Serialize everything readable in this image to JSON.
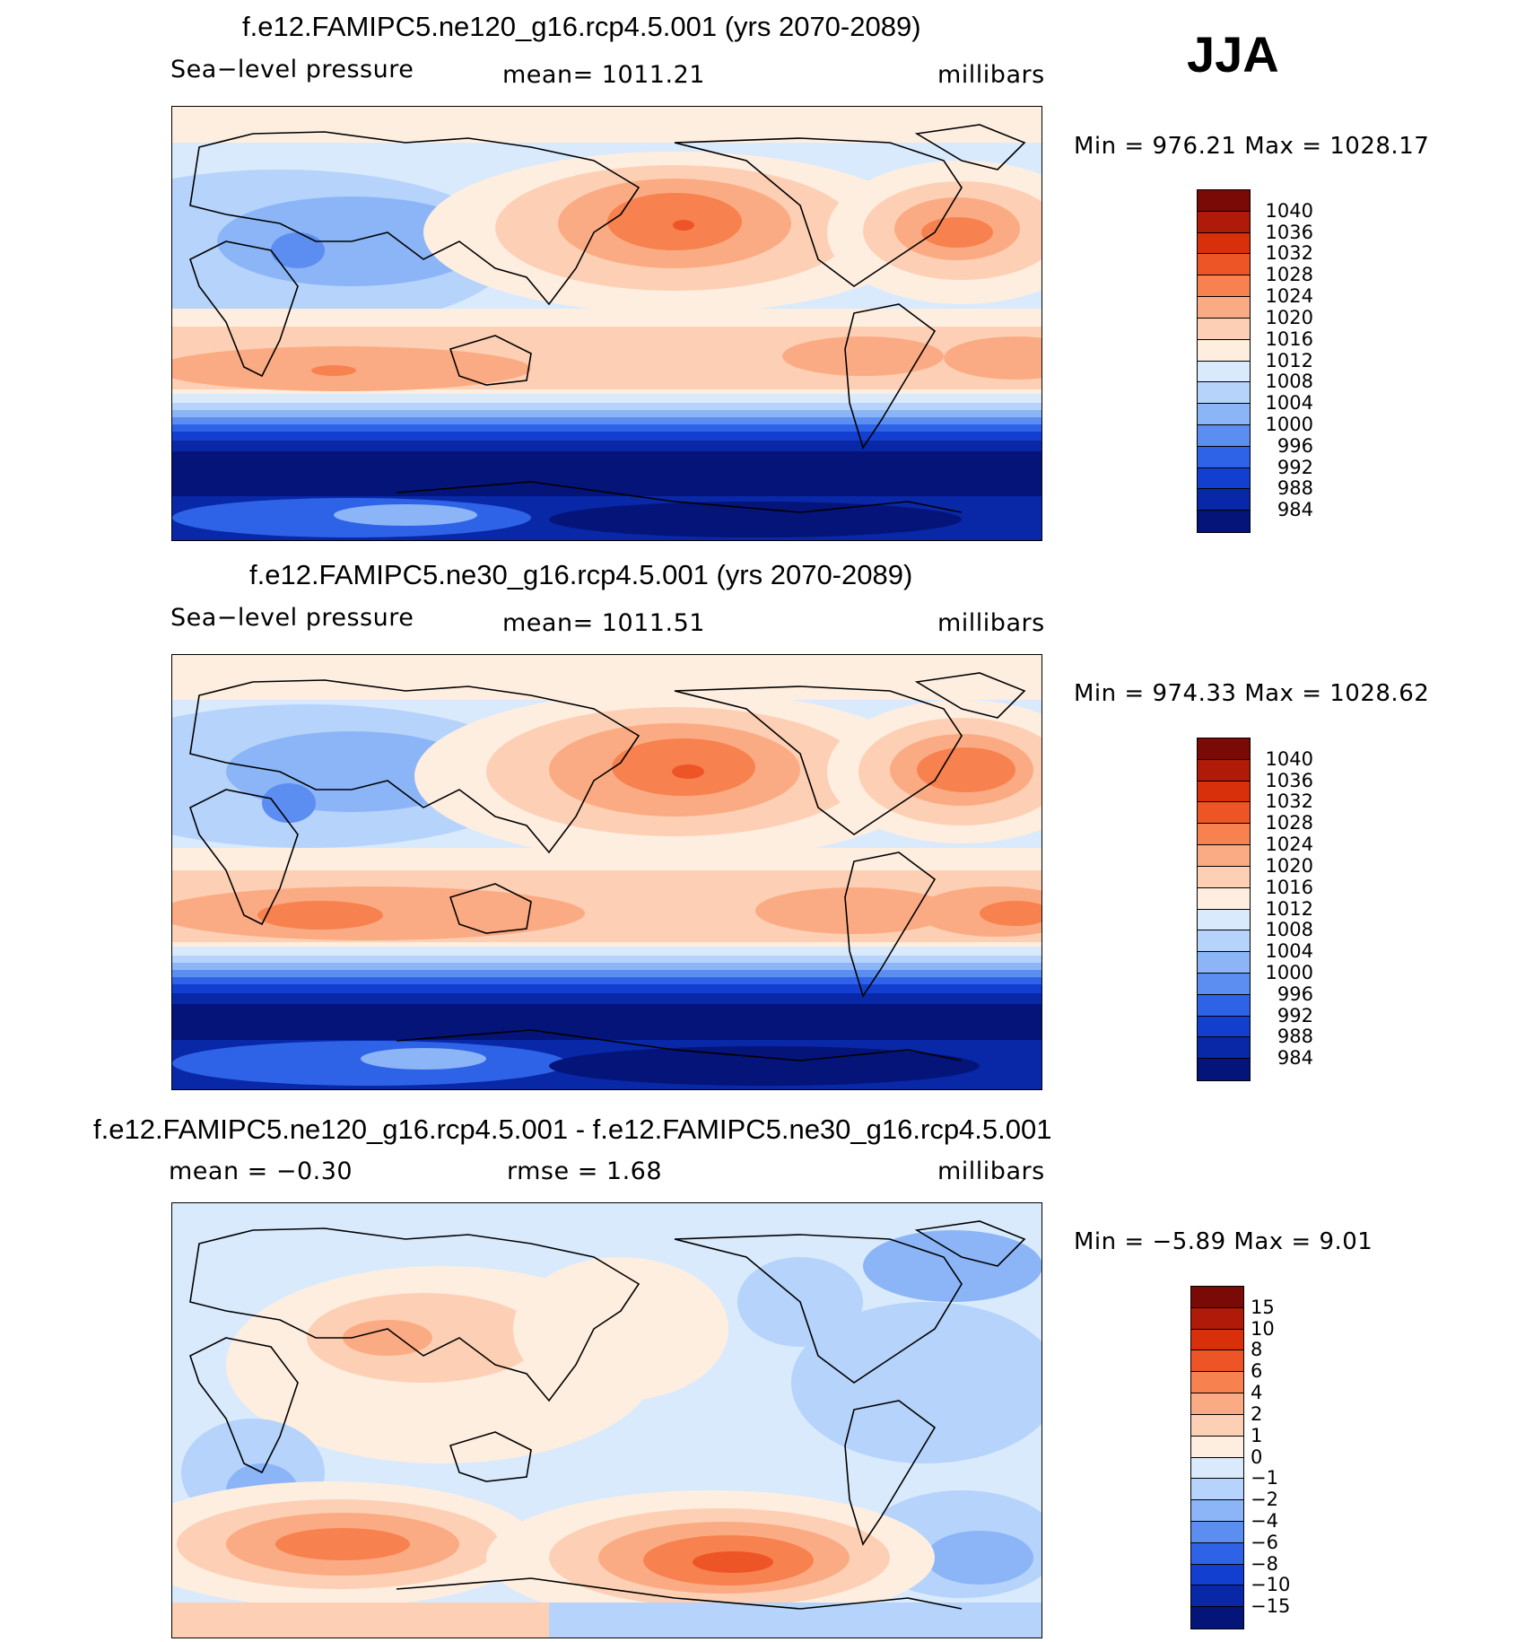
{
  "season": "JJA",
  "panels": [
    {
      "title": "f.e12.FAMIPC5.ne120_g16.rcp4.5.001 (yrs 2070-2089)",
      "field": "Sea−level pressure",
      "mean": "mean= 1011.21",
      "units": "millibars",
      "minmax": "Min = 976.21 Max = 1028.17"
    },
    {
      "title": "f.e12.FAMIPC5.ne30_g16.rcp4.5.001 (yrs 2070-2089)",
      "field": "Sea−level pressure",
      "mean": "mean= 1011.51",
      "units": "millibars",
      "minmax": "Min = 974.33 Max = 1028.62"
    },
    {
      "title": "f.e12.FAMIPC5.ne120_g16.rcp4.5.001 - f.e12.FAMIPC5.ne30_g16.rcp4.5.001",
      "mean": "mean = −0.30",
      "rmse": "rmse = 1.68",
      "units": "millibars",
      "minmax": "Min = −5.89 Max = 9.01"
    }
  ],
  "colorbars": {
    "slp": {
      "labels": [
        "1040",
        "1036",
        "1032",
        "1028",
        "1024",
        "1020",
        "1016",
        "1012",
        "1008",
        "1004",
        "1000",
        "996",
        "992",
        "988",
        "984"
      ],
      "colors": [
        "#7a0a05",
        "#b01a08",
        "#d8300b",
        "#ee5526",
        "#f7814f",
        "#fbab83",
        "#fdd0b5",
        "#feeee0",
        "#d9eafd",
        "#b5d3fb",
        "#8bb5f7",
        "#5b8ef0",
        "#2f63e7",
        "#123fd0",
        "#0828a8",
        "#041479"
      ]
    },
    "diff": {
      "labels": [
        "15",
        "10",
        "8",
        "6",
        "4",
        "2",
        "1",
        "0",
        "−1",
        "−2",
        "−4",
        "−6",
        "−8",
        "−10",
        "−15"
      ],
      "colors": [
        "#7a0a05",
        "#b01a08",
        "#d8300b",
        "#ee5526",
        "#f7814f",
        "#fbab83",
        "#fdd0b5",
        "#feeee0",
        "#d9eafd",
        "#b5d3fb",
        "#8bb5f7",
        "#5b8ef0",
        "#2f63e7",
        "#123fd0",
        "#0828a8",
        "#041479"
      ]
    }
  }
}
